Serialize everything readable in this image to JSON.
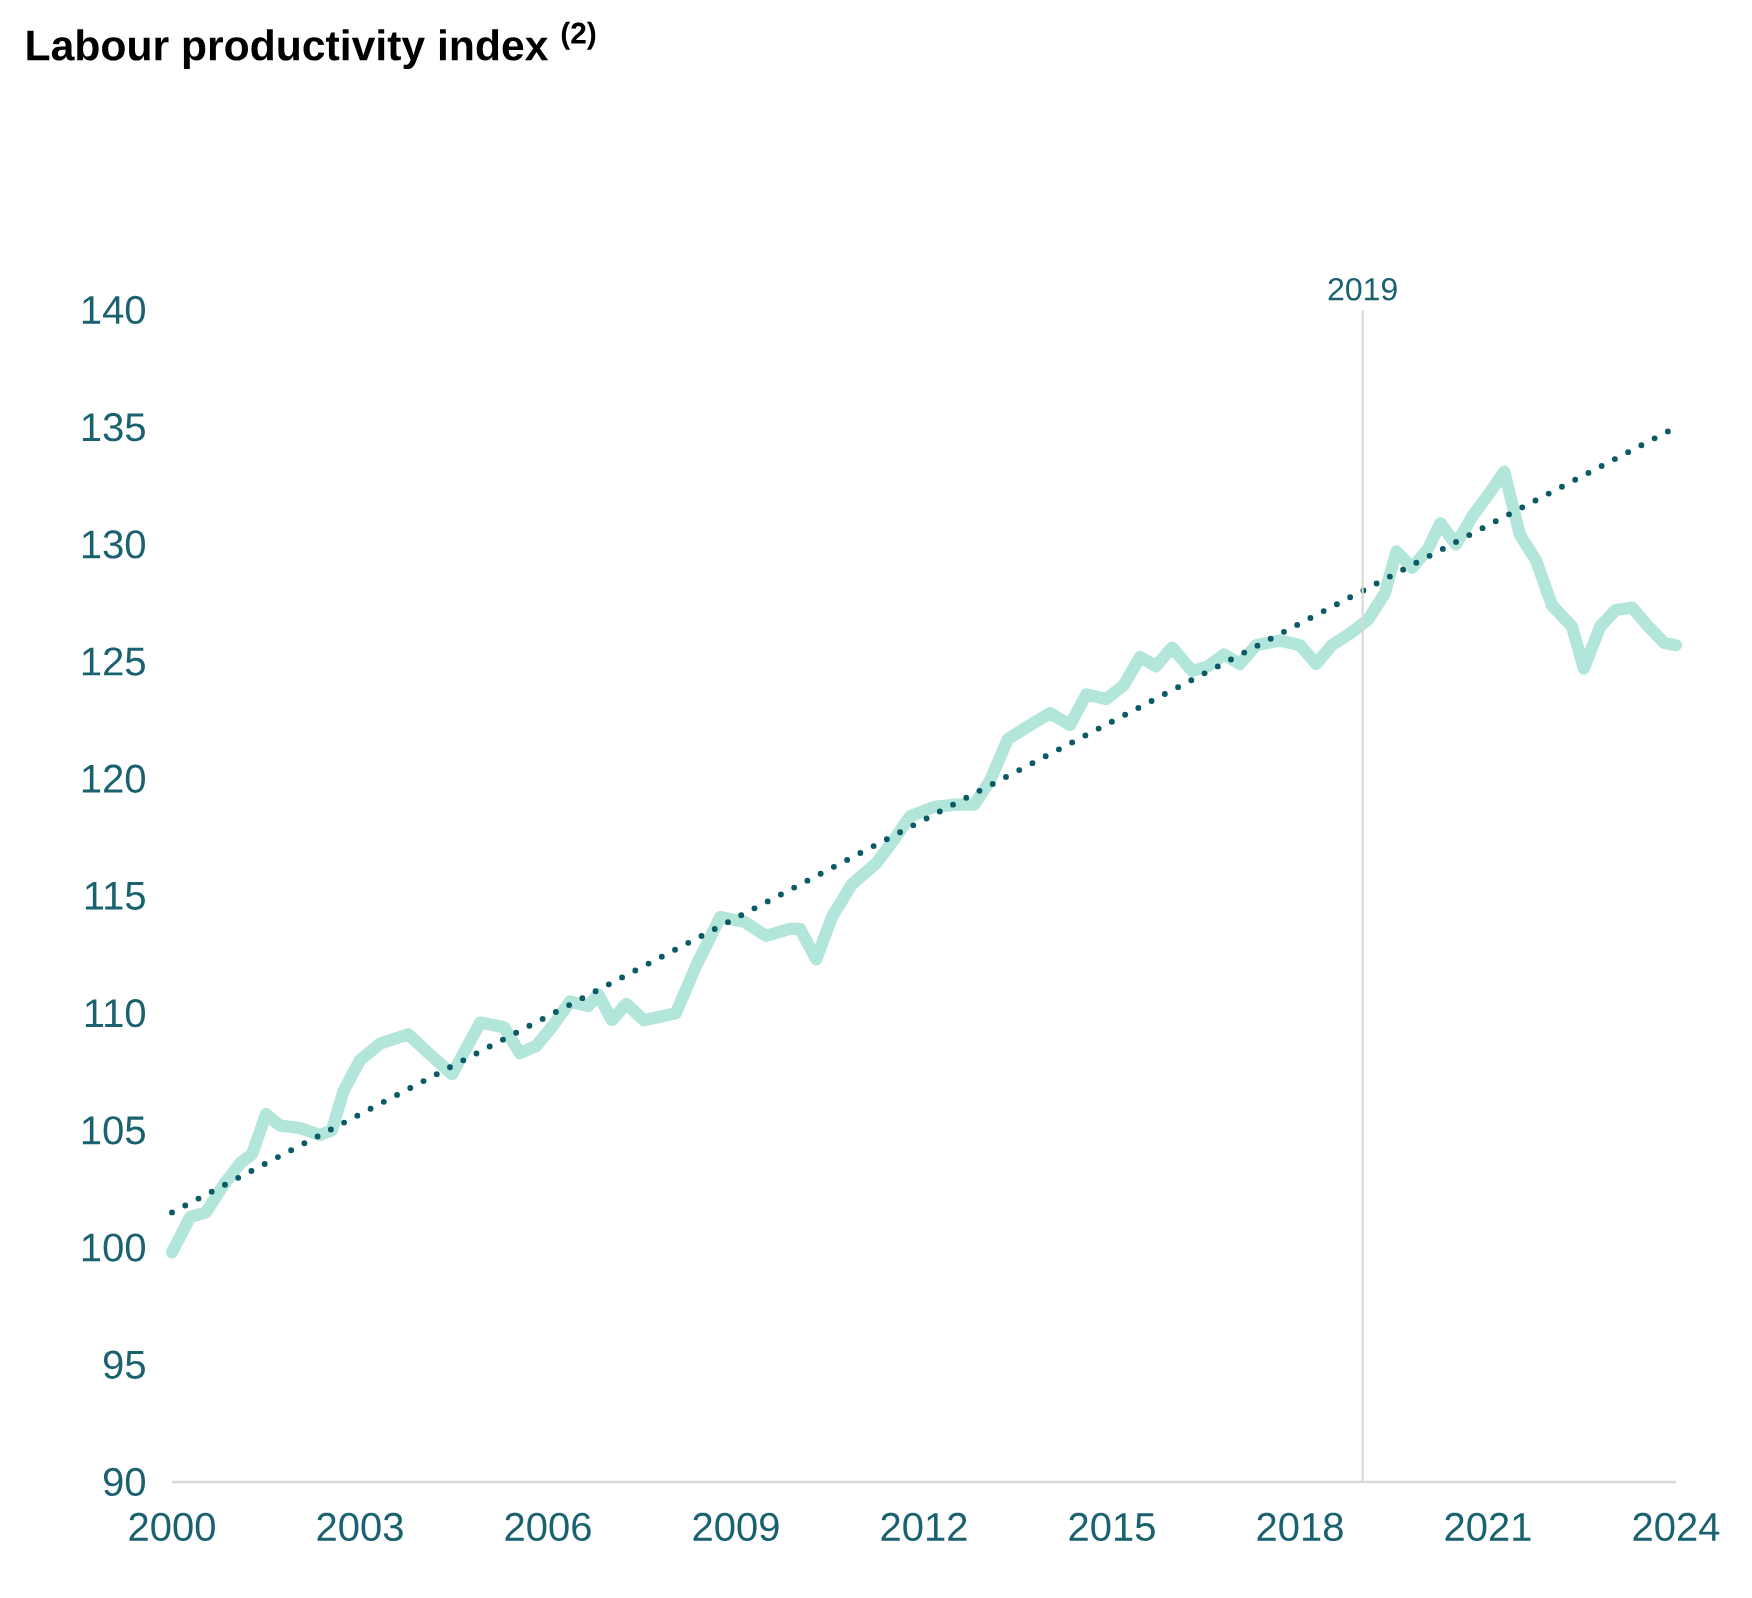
{
  "chart_data": {
    "type": "line",
    "title": "Labour productivity index $^{(2)}$",
    "xlim": [
      2000,
      2024
    ],
    "ylim": [
      90,
      140
    ],
    "xticks": [
      2000,
      2003,
      2006,
      2009,
      2012,
      2015,
      2018,
      2021,
      2024
    ],
    "yticks": [
      90,
      95,
      100,
      105,
      110,
      115,
      120,
      125,
      130,
      135,
      140
    ],
    "marker": "none",
    "ref_lines": [
      {
        "axis": "x",
        "value": 2019,
        "label": "2019",
        "color": "#d9d9d9"
      }
    ],
    "series": [
      {
        "color": "#b3e6da",
        "line_style": "solid",
        "x": [
          2000,
          2000.29,
          2000.54,
          2000.83,
          2001.09,
          2001.28,
          2001.5,
          2001.72,
          2002.04,
          2002.36,
          2002.55,
          2002.74,
          2003.0,
          2003.32,
          2003.77,
          2004.09,
          2004.47,
          2004.92,
          2005.3,
          2005.55,
          2005.81,
          2006.06,
          2006.35,
          2006.64,
          2006.8,
          2007.02,
          2007.25,
          2007.53,
          2008.04,
          2008.36,
          2008.75,
          2009.13,
          2009.48,
          2009.86,
          2010.02,
          2010.28,
          2010.53,
          2010.85,
          2011.24,
          2011.52,
          2011.78,
          2012.16,
          2012.51,
          2012.8,
          2013.05,
          2013.34,
          2013.76,
          2014.01,
          2014.33,
          2014.59,
          2014.91,
          2015.19,
          2015.45,
          2015.7,
          2015.96,
          2016.28,
          2016.53,
          2016.79,
          2017.04,
          2017.3,
          2017.68,
          2018.0,
          2018.26,
          2018.51,
          2018.8,
          2019.09,
          2019.35,
          2019.54,
          2019.79,
          2020.04,
          2020.24,
          2020.49,
          2020.75,
          2021.0,
          2021.26,
          2021.51,
          2021.77,
          2022.02,
          2022.34,
          2022.53,
          2022.79,
          2023.04,
          2023.3,
          2023.56,
          2023.81,
          2024.0
        ],
        "values": [
          99.8,
          101.3,
          101.5,
          102.7,
          103.6,
          104.0,
          105.7,
          105.2,
          105.1,
          104.8,
          105.0,
          106.7,
          108.0,
          108.7,
          109.1,
          108.3,
          107.4,
          109.6,
          109.4,
          108.3,
          108.6,
          109.4,
          110.5,
          110.3,
          110.8,
          109.7,
          110.4,
          109.7,
          110.0,
          112.0,
          114.1,
          113.9,
          113.3,
          113.6,
          113.6,
          112.3,
          114.1,
          115.5,
          116.4,
          117.4,
          118.4,
          118.8,
          118.9,
          118.9,
          119.9,
          121.7,
          122.4,
          122.8,
          122.3,
          123.6,
          123.4,
          124.0,
          125.2,
          124.8,
          125.6,
          124.6,
          124.8,
          125.3,
          124.9,
          125.7,
          125.9,
          125.7,
          124.9,
          125.7,
          126.2,
          126.8,
          127.9,
          129.7,
          129.0,
          129.8,
          130.9,
          130.0,
          131.2,
          132.1,
          133.1,
          130.4,
          129.3,
          127.4,
          126.5,
          124.7,
          126.5,
          127.2,
          127.3,
          126.5,
          125.8,
          125.7
        ]
      },
      {
        "color": "#0b5a66",
        "line_style": "dotted",
        "x": [
          2000,
          2024
        ],
        "values": [
          101.5,
          135.0
        ]
      }
    ]
  }
}
